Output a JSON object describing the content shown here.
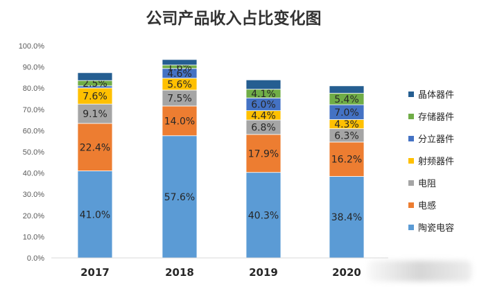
{
  "chart_data": {
    "type": "bar",
    "stacked": true,
    "title": "公司产品收入占比变化图",
    "categories": [
      "2017",
      "2018",
      "2019",
      "2020"
    ],
    "yticks": [
      "0.0%",
      "10.0%",
      "20.0%",
      "30.0%",
      "40.0%",
      "50.0%",
      "60.0%",
      "70.0%",
      "80.0%",
      "90.0%",
      "100.0%"
    ],
    "ylim": [
      0,
      100
    ],
    "grid": false,
    "legend_position": "right",
    "series": [
      {
        "name": "陶瓷电容",
        "color": "#5B9BD5",
        "values": [
          41.0,
          57.6,
          40.3,
          38.4
        ],
        "labels": [
          "41.0%",
          "57.6%",
          "40.3%",
          "38.4%"
        ]
      },
      {
        "name": "电感",
        "color": "#ED7D31",
        "values": [
          22.4,
          14.0,
          17.9,
          16.2
        ],
        "labels": [
          "22.4%",
          "14.0%",
          "17.9%",
          "16.2%"
        ]
      },
      {
        "name": "电阻",
        "color": "#A5A5A5",
        "values": [
          9.1,
          7.5,
          6.8,
          6.3
        ],
        "labels": [
          "9.1%",
          "7.5%",
          "6.8%",
          "6.3%"
        ]
      },
      {
        "name": "射频器件",
        "color": "#FFC000",
        "values": [
          7.6,
          5.6,
          4.4,
          4.3
        ],
        "labels": [
          "7.6%",
          "5.6%",
          "4.4%",
          "4.3%"
        ]
      },
      {
        "name": "分立器件",
        "color": "#4472C4",
        "values": [
          1.0,
          4.6,
          6.0,
          7.0
        ],
        "labels": [
          "",
          "4.6%",
          "6.0%",
          "7.0%"
        ]
      },
      {
        "name": "存储器件",
        "color": "#70AD47",
        "values": [
          2.5,
          1.6,
          4.1,
          5.4
        ],
        "labels": [
          "2.5%",
          "1.6%",
          "4.1%",
          "5.4%"
        ]
      },
      {
        "name": "晶体器件",
        "color": "#255E91",
        "values": [
          3.7,
          2.6,
          4.4,
          3.5
        ],
        "labels": [
          "",
          "",
          "",
          ""
        ]
      }
    ]
  }
}
